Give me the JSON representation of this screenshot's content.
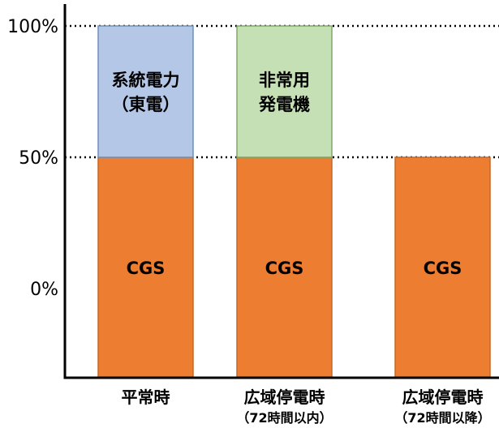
{
  "chart_data": {
    "type": "bar",
    "stacked": true,
    "categories": [
      {
        "label": "平常時",
        "sublabel": ""
      },
      {
        "label": "広域停電時",
        "sublabel": "（72時間以内）"
      },
      {
        "label": "広域停電時",
        "sublabel": "（72時間以降）"
      }
    ],
    "segments": [
      [
        {
          "value": 50,
          "label": "CGS",
          "color": "#ED7D31"
        },
        {
          "value": 50,
          "label": "系統電力\n（東電）",
          "color": "#B4C7E7"
        }
      ],
      [
        {
          "value": 50,
          "label": "CGS",
          "color": "#ED7D31"
        },
        {
          "value": 50,
          "label": "非常用\n発電機",
          "color": "#C5E0B4"
        }
      ],
      [
        {
          "value": 50,
          "label": "CGS",
          "color": "#ED7D31"
        }
      ]
    ],
    "yticks": [
      {
        "value": 0,
        "label": "0%"
      },
      {
        "value": 50,
        "label": "50%"
      },
      {
        "value": 100,
        "label": "100%"
      }
    ],
    "reference_lines": [
      50,
      100
    ],
    "title": "",
    "xlabel": "",
    "ylabel": ""
  }
}
